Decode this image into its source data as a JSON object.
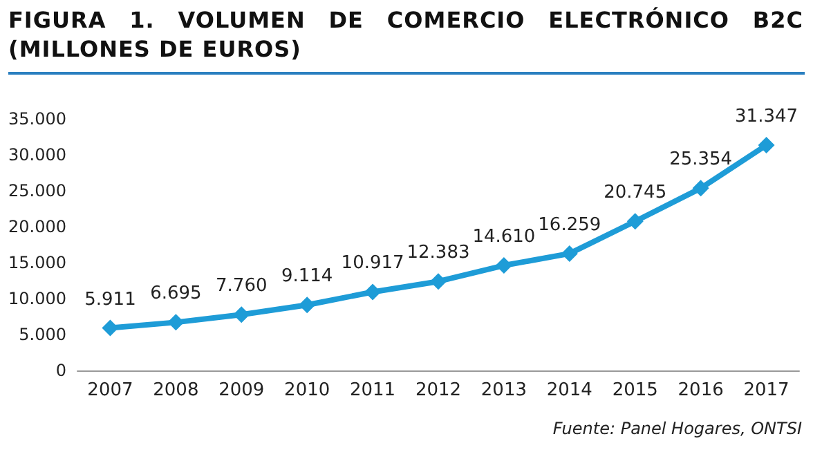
{
  "chart_data": {
    "type": "line",
    "title": "FIGURA 1. VOLUMEN DE COMERCIO ELECTRÓNICO B2C (MILLONES DE EUROS)",
    "categories": [
      "2007",
      "2008",
      "2009",
      "2010",
      "2011",
      "2012",
      "2013",
      "2014",
      "2015",
      "2016",
      "2017"
    ],
    "series": [
      {
        "color": "#1e9cd7",
        "values": [
          5911,
          6695,
          7760,
          9114,
          10917,
          12383,
          14610,
          16259,
          20745,
          25354,
          31347
        ],
        "value_labels": [
          "5.911",
          "6.695",
          "7.760",
          "9.114",
          "10.917",
          "12.383",
          "14.610",
          "16.259",
          "20.745",
          "25.354",
          "31.347"
        ]
      }
    ],
    "ylim": [
      0,
      35000
    ],
    "yticks": [
      {
        "value": 0,
        "label": "0"
      },
      {
        "value": 5000,
        "label": "5.000"
      },
      {
        "value": 10000,
        "label": "10.000"
      },
      {
        "value": 15000,
        "label": "15.000"
      },
      {
        "value": 20000,
        "label": "20.000"
      },
      {
        "value": 25000,
        "label": "25.000"
      },
      {
        "value": 30000,
        "label": "30.000"
      },
      {
        "value": 35000,
        "label": "35.000"
      }
    ],
    "grid": false,
    "marker": "diamond",
    "line_style": "solid",
    "annotations": [
      "Fuente: Panel Hogares, ONTSI"
    ]
  }
}
